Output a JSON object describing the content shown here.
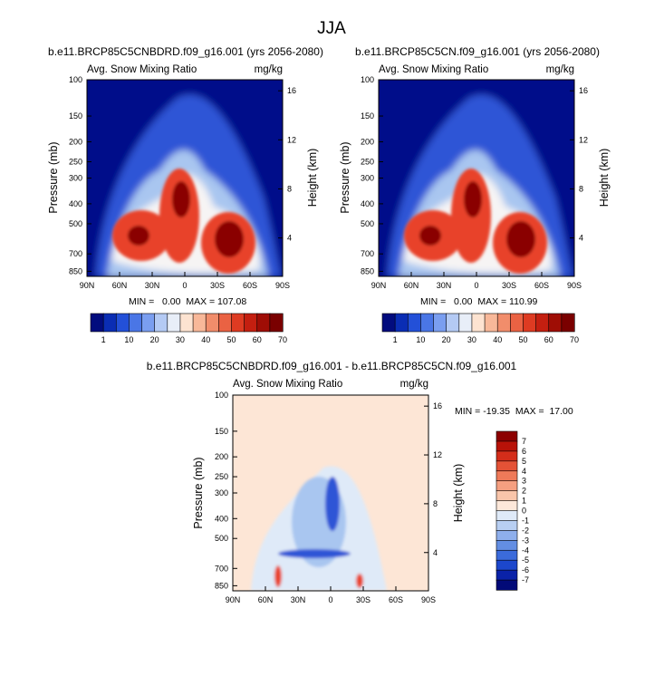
{
  "figure": {
    "title": "JJA",
    "ylabel_left": "Pressure (mb)",
    "ylabel_right": "Height (km)"
  },
  "colors": {
    "blue_dark": "#000c8a",
    "blue_mid": "#2f55d6",
    "blue_light": "#a9c6f0",
    "white": "#f6f4f4",
    "cream": "#fde6d6",
    "red": "#e8432a",
    "red_dark": "#8a0000"
  },
  "chart_data": [
    {
      "type": "heatmap",
      "id": "left",
      "title": "b.e11.BRCP85C5CNBDRD.f09_g16.001 (yrs 2056-2080)",
      "subtitle_left": "Avg. Snow Mixing Ratio",
      "subtitle_right": "mg/kg",
      "x_ticks": [
        "90N",
        "60N",
        "30N",
        "0",
        "30S",
        "60S",
        "90S"
      ],
      "y_ticks_pressure": [
        100,
        150,
        200,
        250,
        300,
        400,
        500,
        700,
        850
      ],
      "y_ticks_height": [
        4,
        8,
        12,
        16
      ],
      "stats": "MIN =   0.00  MAX = 107.08",
      "stat_min": 0.0,
      "stat_max": 107.08,
      "colorbar_labels": [
        "1",
        "10",
        "20",
        "30",
        "40",
        "50",
        "60",
        "70"
      ],
      "colorbar_colors": [
        "#020c7e",
        "#0a2db4",
        "#2350d8",
        "#4a76e6",
        "#7a9ef0",
        "#b4caf4",
        "#e8eef8",
        "#fde3d1",
        "#f8b899",
        "#f18d6b",
        "#ea6243",
        "#de3b22",
        "#c41f10",
        "#9f0d05",
        "#7a0000"
      ]
    },
    {
      "type": "heatmap",
      "id": "right",
      "title": "b.e11.BRCP85C5CN.f09_g16.001 (yrs 2056-2080)",
      "subtitle_left": "Avg. Snow Mixing Ratio",
      "subtitle_right": "mg/kg",
      "x_ticks": [
        "90N",
        "60N",
        "30N",
        "0",
        "30S",
        "60S",
        "90S"
      ],
      "y_ticks_pressure": [
        100,
        150,
        200,
        250,
        300,
        400,
        500,
        700,
        850
      ],
      "y_ticks_height": [
        4,
        8,
        12,
        16
      ],
      "stats": "MIN =   0.00  MAX = 110.99",
      "stat_min": 0.0,
      "stat_max": 110.99,
      "colorbar_labels": [
        "1",
        "10",
        "20",
        "30",
        "40",
        "50",
        "60",
        "70"
      ],
      "colorbar_colors": [
        "#020c7e",
        "#0a2db4",
        "#2350d8",
        "#4a76e6",
        "#7a9ef0",
        "#b4caf4",
        "#e8eef8",
        "#fde3d1",
        "#f8b899",
        "#f18d6b",
        "#ea6243",
        "#de3b22",
        "#c41f10",
        "#9f0d05",
        "#7a0000"
      ]
    },
    {
      "type": "heatmap",
      "id": "diff",
      "title": "b.e11.BRCP85C5CNBDRD.f09_g16.001 - b.e11.BRCP85C5CN.f09_g16.001",
      "subtitle_left": "Avg. Snow Mixing Ratio",
      "subtitle_right": "mg/kg",
      "x_ticks": [
        "90N",
        "60N",
        "30N",
        "0",
        "30S",
        "60S",
        "90S"
      ],
      "y_ticks_pressure": [
        100,
        150,
        200,
        250,
        300,
        400,
        500,
        700,
        850
      ],
      "y_ticks_height": [
        4,
        8,
        12,
        16
      ],
      "stats": "MIN = -19.35  MAX =  17.00",
      "stat_min": -19.35,
      "stat_max": 17.0,
      "colorbar_labels": [
        "7",
        "6",
        "5",
        "4",
        "3",
        "2",
        "1",
        "0",
        "-1",
        "-2",
        "-3",
        "-4",
        "-5",
        "-6",
        "-7"
      ],
      "colorbar_colors": [
        "#8c0000",
        "#b81208",
        "#d42d1a",
        "#e45236",
        "#ef7a59",
        "#f59f80",
        "#f9c5aa",
        "#fde8da",
        "#dfeaf8",
        "#b8cff2",
        "#8eafec",
        "#638ee3",
        "#3b6bdb",
        "#1c47cc",
        "#0a22a8",
        "#020a78"
      ]
    }
  ]
}
